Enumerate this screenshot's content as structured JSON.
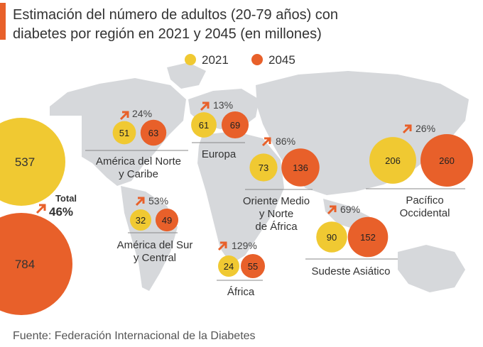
{
  "chart_data": {
    "type": "bubble-map",
    "title_lines": [
      "Estimación del número de adultos (20-79 años) con",
      "diabetes por región en 2021 y 2045 (en millones)"
    ],
    "legend": [
      {
        "label": "2021",
        "color": "#f0c932"
      },
      {
        "label": "2045",
        "color": "#e8602a"
      }
    ],
    "units": "millones",
    "total": {
      "label": "Total",
      "values": [
        537,
        784
      ],
      "change": "46%"
    },
    "regions": [
      {
        "name_lines": [
          "América del Norte",
          "y Caribe"
        ],
        "values": [
          51,
          63
        ],
        "change": "24%"
      },
      {
        "name_lines": [
          "Europa"
        ],
        "values": [
          61,
          69
        ],
        "change": "13%"
      },
      {
        "name_lines": [
          "Oriente Medio",
          "y Norte",
          "de África"
        ],
        "values": [
          73,
          136
        ],
        "change": "86%"
      },
      {
        "name_lines": [
          "Pacífico",
          "Occidental"
        ],
        "values": [
          206,
          260
        ],
        "change": "26%"
      },
      {
        "name_lines": [
          "América del Sur",
          "y Central"
        ],
        "values": [
          32,
          49
        ],
        "change": "53%"
      },
      {
        "name_lines": [
          "Sudeste Asiático"
        ],
        "values": [
          90,
          152
        ],
        "change": "69%"
      },
      {
        "name_lines": [
          "África"
        ],
        "values": [
          24,
          55
        ],
        "change": "129%"
      }
    ],
    "source": "Fuente: Federación Internacional de la Diabetes"
  },
  "colors": {
    "y2021": "#f0c932",
    "y2045": "#e8602a",
    "map": "#d6d8db",
    "text": "#333333",
    "arrow": "#e8602a"
  },
  "icons": [
    "trend-up-arrow-icon"
  ]
}
